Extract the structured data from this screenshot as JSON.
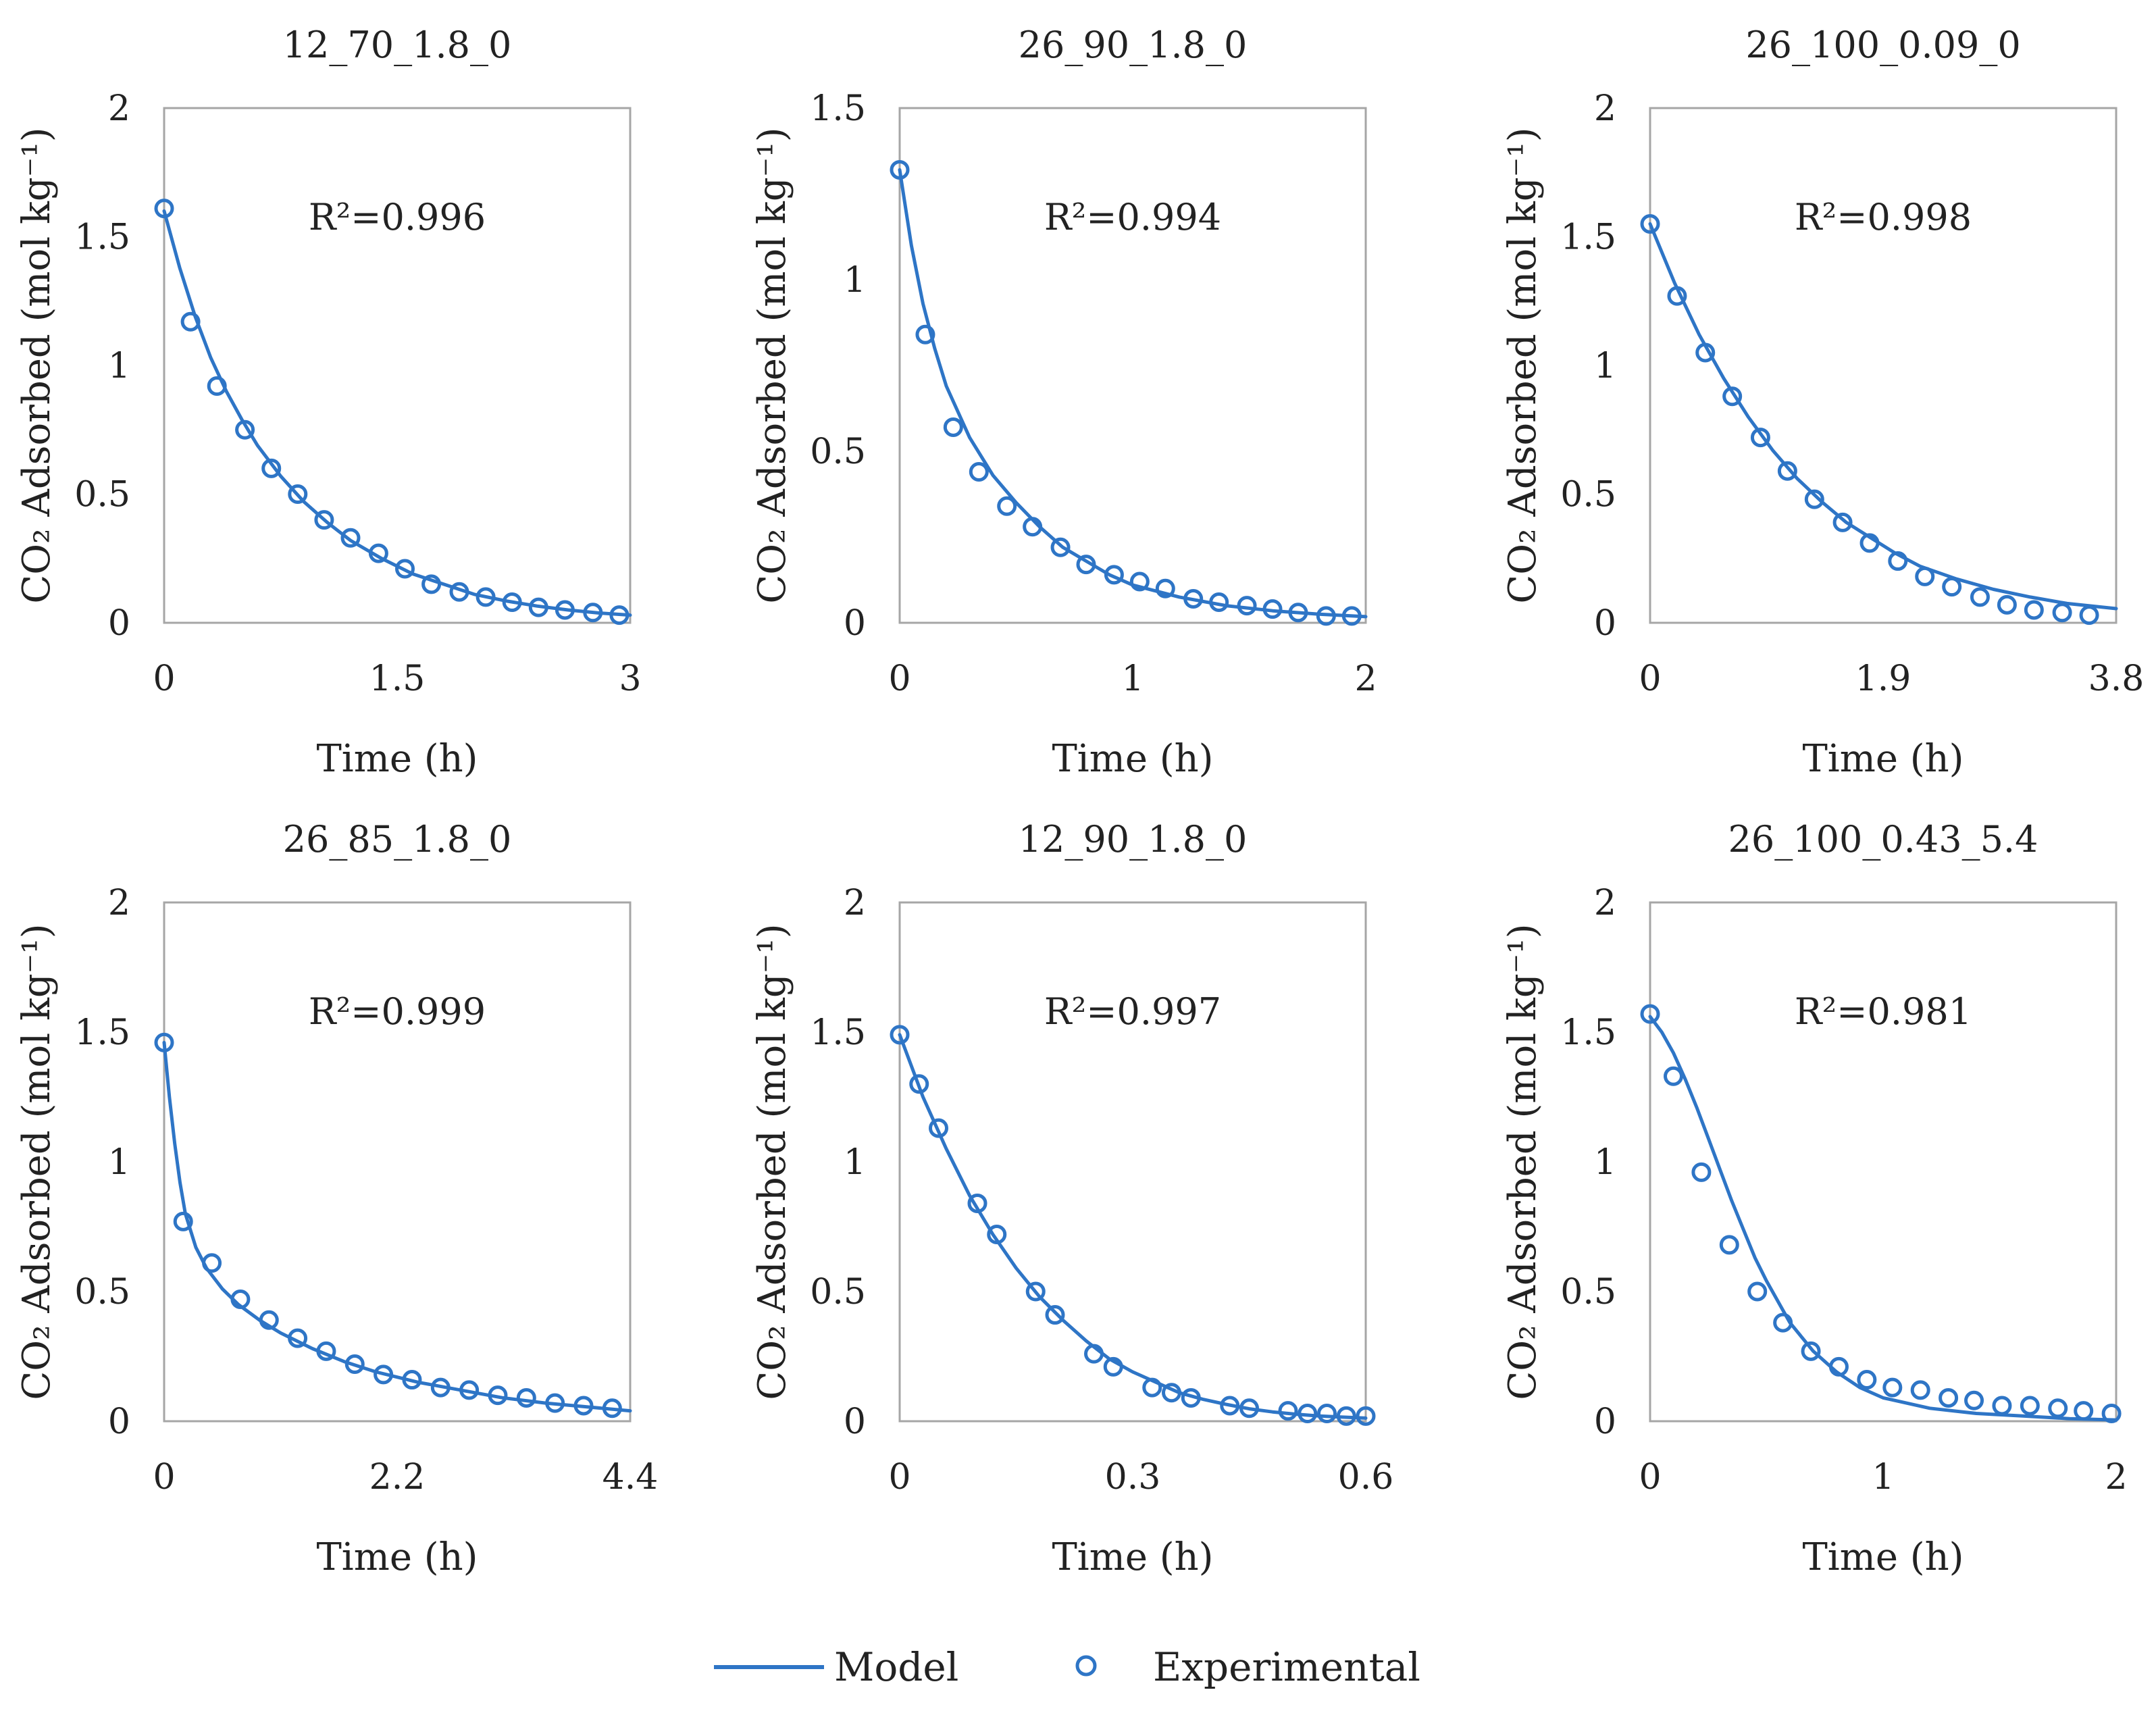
{
  "colors": {
    "series": "#2E75C6",
    "frame": "#A6A6A6",
    "text": "#222222"
  },
  "legend": {
    "items": [
      {
        "label": "Model",
        "marker": "line"
      },
      {
        "label": "Experimental",
        "marker": "circle"
      }
    ]
  },
  "chart_data": [
    {
      "type": "line",
      "title": "12_70_1.8_0",
      "r2_label": "R²=0.996",
      "xlabel": "Time (h)",
      "ylabel": "CO₂ Adsorbed (mol kg⁻¹)",
      "xlim": [
        0,
        3
      ],
      "ylim": [
        0,
        2
      ],
      "xticks": [
        0,
        1.5,
        3
      ],
      "xtick_labels": [
        "0",
        "1.5",
        "3"
      ],
      "yticks": [
        0,
        0.5,
        1,
        1.5,
        2
      ],
      "ytick_labels": [
        "0",
        "0.5",
        "1",
        "1.5",
        "2"
      ],
      "series": [
        {
          "name": "Model",
          "kind": "line",
          "x": [
            0,
            0.1,
            0.2,
            0.3,
            0.4,
            0.5,
            0.6,
            0.75,
            0.9,
            1.05,
            1.2,
            1.4,
            1.6,
            1.8,
            2.0,
            2.2,
            2.4,
            2.6,
            2.8,
            3.0
          ],
          "y": [
            1.6,
            1.38,
            1.19,
            1.03,
            0.9,
            0.79,
            0.69,
            0.57,
            0.47,
            0.39,
            0.32,
            0.25,
            0.19,
            0.15,
            0.11,
            0.085,
            0.065,
            0.05,
            0.038,
            0.03
          ]
        },
        {
          "name": "Experimental",
          "kind": "scatter",
          "x": [
            0,
            0.17,
            0.34,
            0.52,
            0.69,
            0.86,
            1.03,
            1.2,
            1.38,
            1.55,
            1.72,
            1.9,
            2.07,
            2.24,
            2.41,
            2.58,
            2.76,
            2.93
          ],
          "y": [
            1.61,
            1.17,
            0.92,
            0.75,
            0.6,
            0.5,
            0.4,
            0.33,
            0.27,
            0.21,
            0.15,
            0.12,
            0.1,
            0.08,
            0.06,
            0.05,
            0.04,
            0.03
          ]
        }
      ]
    },
    {
      "type": "line",
      "title": "26_90_1.8_0",
      "r2_label": "R²=0.994",
      "xlabel": "Time (h)",
      "ylabel": "CO₂ Adsorbed (mol kg⁻¹)",
      "xlim": [
        0,
        2
      ],
      "ylim": [
        0,
        1.5
      ],
      "xticks": [
        0,
        1,
        2
      ],
      "xtick_labels": [
        "0",
        "1",
        "2"
      ],
      "yticks": [
        0,
        0.5,
        1,
        1.5
      ],
      "ytick_labels": [
        "0",
        "0.5",
        "1",
        "1.5"
      ],
      "series": [
        {
          "name": "Model",
          "kind": "line",
          "x": [
            0,
            0.05,
            0.1,
            0.15,
            0.2,
            0.3,
            0.4,
            0.5,
            0.6,
            0.7,
            0.8,
            0.9,
            1.0,
            1.2,
            1.4,
            1.6,
            1.8,
            2.0
          ],
          "y": [
            1.32,
            1.1,
            0.93,
            0.8,
            0.69,
            0.54,
            0.43,
            0.35,
            0.28,
            0.22,
            0.18,
            0.14,
            0.11,
            0.075,
            0.05,
            0.035,
            0.025,
            0.018
          ]
        },
        {
          "name": "Experimental",
          "kind": "scatter",
          "x": [
            0,
            0.11,
            0.23,
            0.34,
            0.46,
            0.57,
            0.69,
            0.8,
            0.92,
            1.03,
            1.14,
            1.26,
            1.37,
            1.49,
            1.6,
            1.71,
            1.83,
            1.94
          ],
          "y": [
            1.32,
            0.84,
            0.57,
            0.44,
            0.34,
            0.28,
            0.22,
            0.17,
            0.14,
            0.12,
            0.1,
            0.07,
            0.06,
            0.05,
            0.04,
            0.03,
            0.02,
            0.02
          ]
        }
      ]
    },
    {
      "type": "line",
      "title": "26_100_0.09_0",
      "r2_label": "R²=0.998",
      "xlabel": "Time (h)",
      "ylabel": "CO₂ Adsorbed (mol kg⁻¹)",
      "xlim": [
        0,
        3.8
      ],
      "ylim": [
        0,
        2
      ],
      "xticks": [
        0,
        1.9,
        3.8
      ],
      "xtick_labels": [
        "0",
        "1.9",
        "3.8"
      ],
      "yticks": [
        0,
        0.5,
        1,
        1.5,
        2
      ],
      "ytick_labels": [
        "0",
        "0.5",
        "1",
        "1.5",
        "2"
      ],
      "series": [
        {
          "name": "Model",
          "kind": "line",
          "x": [
            0,
            0.2,
            0.4,
            0.6,
            0.8,
            1.0,
            1.2,
            1.4,
            1.6,
            1.8,
            2.0,
            2.2,
            2.5,
            2.8,
            3.1,
            3.4,
            3.8
          ],
          "y": [
            1.55,
            1.32,
            1.12,
            0.95,
            0.8,
            0.67,
            0.56,
            0.47,
            0.39,
            0.33,
            0.27,
            0.22,
            0.17,
            0.13,
            0.1,
            0.075,
            0.055
          ]
        },
        {
          "name": "Experimental",
          "kind": "scatter",
          "x": [
            0,
            0.22,
            0.45,
            0.67,
            0.9,
            1.12,
            1.34,
            1.57,
            1.79,
            2.02,
            2.24,
            2.46,
            2.69,
            2.91,
            3.13,
            3.36,
            3.58
          ],
          "y": [
            1.55,
            1.27,
            1.05,
            0.88,
            0.72,
            0.59,
            0.48,
            0.39,
            0.31,
            0.24,
            0.18,
            0.14,
            0.1,
            0.07,
            0.05,
            0.04,
            0.03
          ]
        }
      ]
    },
    {
      "type": "line",
      "title": "26_85_1.8_0",
      "r2_label": "R²=0.999",
      "xlabel": "Time (h)",
      "ylabel": "CO₂ Adsorbed (mol kg⁻¹)",
      "xlim": [
        0,
        4.4
      ],
      "ylim": [
        0,
        2
      ],
      "xticks": [
        0,
        2.2,
        4.4
      ],
      "xtick_labels": [
        "0",
        "2.2",
        "4.4"
      ],
      "yticks": [
        0,
        0.5,
        1,
        1.5,
        2
      ],
      "ytick_labels": [
        "0",
        "0.5",
        "1",
        "1.5",
        "2"
      ],
      "series": [
        {
          "name": "Model",
          "kind": "line",
          "x": [
            0,
            0.05,
            0.1,
            0.15,
            0.2,
            0.3,
            0.4,
            0.55,
            0.7,
            0.9,
            1.1,
            1.4,
            1.7,
            2.0,
            2.4,
            2.8,
            3.2,
            3.6,
            4.0,
            4.4
          ],
          "y": [
            1.46,
            1.25,
            1.07,
            0.92,
            0.8,
            0.67,
            0.59,
            0.51,
            0.45,
            0.39,
            0.34,
            0.28,
            0.23,
            0.19,
            0.15,
            0.12,
            0.09,
            0.07,
            0.055,
            0.04
          ]
        },
        {
          "name": "Experimental",
          "kind": "scatter",
          "x": [
            0,
            0.18,
            0.45,
            0.72,
            0.99,
            1.26,
            1.53,
            1.8,
            2.07,
            2.34,
            2.61,
            2.88,
            3.15,
            3.42,
            3.69,
            3.96,
            4.23
          ],
          "y": [
            1.46,
            0.77,
            0.61,
            0.47,
            0.39,
            0.32,
            0.27,
            0.22,
            0.18,
            0.16,
            0.13,
            0.12,
            0.1,
            0.09,
            0.07,
            0.06,
            0.05
          ]
        }
      ]
    },
    {
      "type": "line",
      "title": "12_90_1.8_0",
      "r2_label": "R²=0.997",
      "xlabel": "Time (h)",
      "ylabel": "CO₂ Adsorbed (mol kg⁻¹)",
      "xlim": [
        0,
        0.6
      ],
      "ylim": [
        0,
        2
      ],
      "xticks": [
        0,
        0.3,
        0.6
      ],
      "xtick_labels": [
        "0",
        "0.3",
        "0.6"
      ],
      "yticks": [
        0,
        0.5,
        1,
        1.5,
        2
      ],
      "ytick_labels": [
        "0",
        "0.5",
        "1",
        "1.5",
        "2"
      ],
      "series": [
        {
          "name": "Model",
          "kind": "line",
          "x": [
            0,
            0.03,
            0.06,
            0.09,
            0.12,
            0.15,
            0.18,
            0.21,
            0.24,
            0.27,
            0.3,
            0.33,
            0.36,
            0.39,
            0.42,
            0.45,
            0.48,
            0.51,
            0.54,
            0.57,
            0.6
          ],
          "y": [
            1.49,
            1.25,
            1.05,
            0.87,
            0.72,
            0.59,
            0.48,
            0.39,
            0.31,
            0.24,
            0.19,
            0.15,
            0.11,
            0.085,
            0.065,
            0.048,
            0.036,
            0.027,
            0.02,
            0.016,
            0.012
          ]
        },
        {
          "name": "Experimental",
          "kind": "scatter",
          "x": [
            0,
            0.025,
            0.05,
            0.1,
            0.125,
            0.175,
            0.2,
            0.25,
            0.275,
            0.325,
            0.35,
            0.375,
            0.425,
            0.45,
            0.5,
            0.525,
            0.55,
            0.575,
            0.6
          ],
          "y": [
            1.49,
            1.3,
            1.13,
            0.84,
            0.72,
            0.5,
            0.41,
            0.26,
            0.21,
            0.13,
            0.11,
            0.09,
            0.06,
            0.05,
            0.04,
            0.03,
            0.03,
            0.02,
            0.02
          ]
        }
      ]
    },
    {
      "type": "line",
      "title": "26_100_0.43_5.4",
      "r2_label": "R²=0.981",
      "xlabel": "Time (h)",
      "ylabel": "CO₂ Adsorbed (mol kg⁻¹)",
      "xlim": [
        0,
        2
      ],
      "ylim": [
        0,
        2
      ],
      "xticks": [
        0,
        1,
        2
      ],
      "xtick_labels": [
        "0",
        "1",
        "2"
      ],
      "yticks": [
        0,
        0.5,
        1,
        1.5,
        2
      ],
      "ytick_labels": [
        "0",
        "0.5",
        "1",
        "1.5",
        "2"
      ],
      "series": [
        {
          "name": "Model",
          "kind": "line",
          "x": [
            0,
            0.05,
            0.1,
            0.15,
            0.2,
            0.25,
            0.3,
            0.35,
            0.4,
            0.45,
            0.5,
            0.6,
            0.7,
            0.8,
            0.9,
            1.0,
            1.2,
            1.4,
            1.6,
            1.8,
            2.0
          ],
          "y": [
            1.56,
            1.5,
            1.42,
            1.32,
            1.21,
            1.09,
            0.97,
            0.85,
            0.74,
            0.63,
            0.54,
            0.38,
            0.27,
            0.19,
            0.13,
            0.09,
            0.05,
            0.03,
            0.02,
            0.01,
            0.005
          ]
        },
        {
          "name": "Experimental",
          "kind": "scatter",
          "x": [
            0,
            0.1,
            0.22,
            0.34,
            0.46,
            0.57,
            0.69,
            0.81,
            0.93,
            1.04,
            1.16,
            1.28,
            1.39,
            1.51,
            1.63,
            1.75,
            1.86,
            1.98
          ],
          "y": [
            1.57,
            1.33,
            0.96,
            0.68,
            0.5,
            0.38,
            0.27,
            0.21,
            0.16,
            0.13,
            0.12,
            0.09,
            0.08,
            0.06,
            0.06,
            0.05,
            0.04,
            0.03
          ]
        }
      ]
    }
  ]
}
